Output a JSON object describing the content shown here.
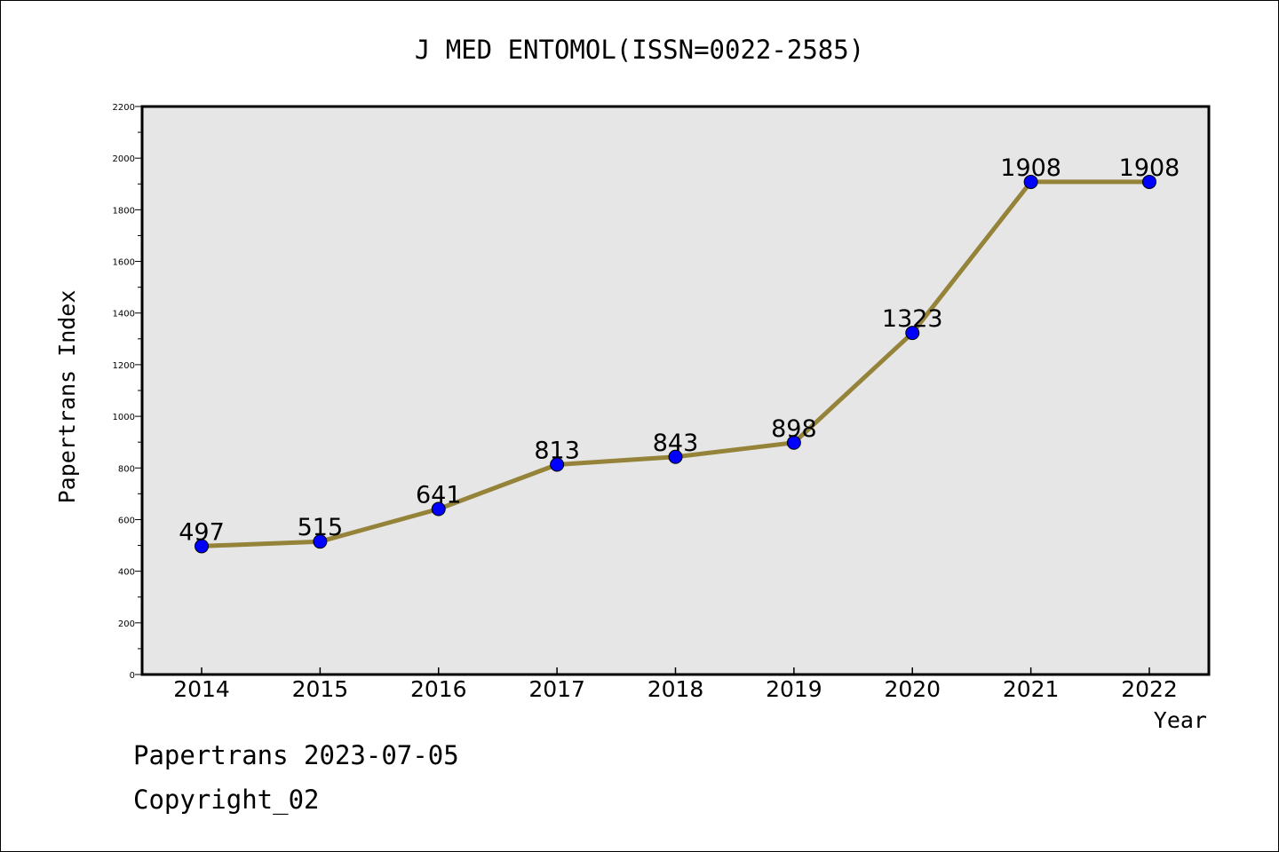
{
  "chart_data": {
    "type": "line",
    "title": "J MED ENTOMOL(ISSN=0022-2585)",
    "xlabel": "Year",
    "ylabel": "Papertrans Index",
    "categories": [
      "2014",
      "2015",
      "2016",
      "2017",
      "2018",
      "2019",
      "2020",
      "2021",
      "2022"
    ],
    "values": [
      497,
      515,
      641,
      813,
      843,
      898,
      1323,
      1908,
      1908
    ],
    "ylim": [
      0,
      2200
    ],
    "yticks": [
      0,
      200,
      400,
      600,
      800,
      1000,
      1200,
      1400,
      1600,
      1800,
      2000,
      2200
    ],
    "grid": false,
    "line_color": "#948339",
    "marker_color": "#0000ff",
    "plot_background": "#e6e6e6"
  },
  "footer": {
    "line1": "Papertrans 2023-07-05",
    "line2": "Copyright_02"
  }
}
